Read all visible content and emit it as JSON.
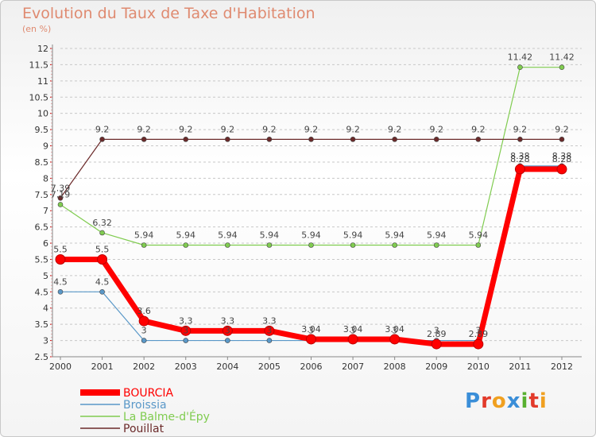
{
  "title": "Evolution du Taux de Taxe d'Habitation",
  "subtitle": "(en %)",
  "logo": [
    "P",
    "r",
    "o",
    "x",
    "i",
    "t",
    "i"
  ],
  "chart_data": {
    "type": "line",
    "title": "Evolution du Taux de Taxe d'Habitation",
    "ylabel": "(en %)",
    "xlabel": "",
    "x": [
      "2000",
      "2001",
      "2002",
      "2003",
      "2004",
      "2005",
      "2006",
      "2007",
      "2008",
      "2009",
      "2010",
      "2011",
      "2012"
    ],
    "ylim": [
      2.5,
      12
    ],
    "yticks": [
      "2.5",
      "3",
      "3.5",
      "4",
      "4.5",
      "5",
      "5.5",
      "6",
      "6.5",
      "7",
      "7.5",
      "8",
      "8.5",
      "9",
      "9.5",
      "10",
      "10.5",
      "11",
      "11.5",
      "12"
    ],
    "grid": "horizontal dashed",
    "legend": "bottom-left",
    "series": [
      {
        "name": "BOURCIA",
        "color": "#ff0000",
        "values": [
          5.5,
          5.5,
          3.6,
          3.3,
          3.3,
          3.3,
          3.04,
          3.04,
          3.04,
          2.89,
          2.89,
          8.28,
          8.28
        ],
        "labels": [
          "5.5",
          "5.5",
          "3.6",
          "3.3",
          "3.3",
          "3.3",
          "3.04",
          "3.04",
          "3.04",
          "2.89",
          "2.89",
          "8.28",
          "8.28"
        ]
      },
      {
        "name": "Broissia",
        "color": "#5a98c8",
        "values": [
          4.5,
          4.5,
          3,
          3,
          3,
          3,
          3,
          3,
          3,
          3,
          3,
          8.38,
          8.38
        ],
        "labels": [
          "4.5",
          "4.5",
          "3",
          "3",
          "3",
          "3",
          "3",
          "3",
          "3",
          "3",
          "3",
          "8.38",
          "8.38"
        ]
      },
      {
        "name": "La Balme-d'Épy",
        "color": "#80cc50",
        "values": [
          7.19,
          6.32,
          5.94,
          5.94,
          5.94,
          5.94,
          5.94,
          5.94,
          5.94,
          5.94,
          5.94,
          11.42,
          11.42
        ],
        "labels": [
          "7.19",
          "6.32",
          "5.94",
          "5.94",
          "5.94",
          "5.94",
          "5.94",
          "5.94",
          "5.94",
          "5.94",
          "5.94",
          "11.42",
          "11.42"
        ]
      },
      {
        "name": "Pouillat",
        "color": "#6b2a2a",
        "values": [
          7.39,
          9.2,
          9.2,
          9.2,
          9.2,
          9.2,
          9.2,
          9.2,
          9.2,
          9.2,
          9.2,
          9.2,
          9.2
        ],
        "labels": [
          "7.39",
          "9.2",
          "9.2",
          "9.2",
          "9.2",
          "9.2",
          "9.2",
          "9.2",
          "9.2",
          "9.2",
          "9.2",
          "9.2",
          "9.2"
        ]
      }
    ]
  }
}
